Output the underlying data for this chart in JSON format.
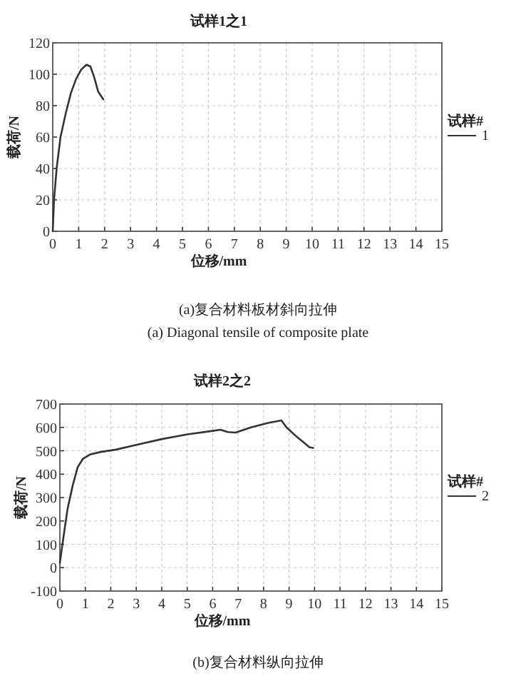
{
  "chart_data": [
    {
      "type": "line",
      "title": "试样1之1",
      "xlabel": "位移/mm",
      "ylabel": "载荷/N",
      "legend_title": "试样#",
      "legend": "right",
      "grid": true,
      "xlim": [
        0,
        15
      ],
      "xticks": [
        0,
        1,
        2,
        3,
        4,
        5,
        6,
        7,
        8,
        9,
        10,
        11,
        12,
        13,
        14,
        15
      ],
      "ylim": [
        0,
        120
      ],
      "yticks": [
        0,
        20,
        40,
        60,
        80,
        100,
        120
      ],
      "series": [
        {
          "name": "1",
          "color": "#333333",
          "x": [
            0,
            0.05,
            0.15,
            0.3,
            0.5,
            0.7,
            0.9,
            1.1,
            1.3,
            1.45,
            1.6,
            1.75,
            1.95
          ],
          "values": [
            0,
            20,
            40,
            60,
            75,
            88,
            97,
            103,
            106,
            105,
            98,
            89,
            84
          ]
        }
      ],
      "annotations": [
        "(a)复合材料板材斜向拉伸",
        "(a) Diagonal tensile of composite plate"
      ]
    },
    {
      "type": "line",
      "title": "试样2之2",
      "xlabel": "位移/mm",
      "ylabel": "载荷/N",
      "legend_title": "试样#",
      "legend": "right",
      "grid": true,
      "xlim": [
        0,
        15
      ],
      "xticks": [
        0,
        1,
        2,
        3,
        4,
        5,
        6,
        7,
        8,
        9,
        10,
        11,
        12,
        13,
        14,
        15
      ],
      "ylim": [
        -100,
        700
      ],
      "yticks": [
        -100,
        0,
        100,
        200,
        300,
        400,
        500,
        600,
        700
      ],
      "series": [
        {
          "name": "2",
          "color": "#333333",
          "x": [
            0,
            0.1,
            0.3,
            0.5,
            0.7,
            0.9,
            1.2,
            1.6,
            2.2,
            3,
            4,
            5,
            6,
            6.3,
            6.6,
            6.9,
            7.5,
            8.2,
            8.7,
            8.9,
            9.3,
            9.8,
            9.95
          ],
          "values": [
            20,
            100,
            250,
            350,
            430,
            465,
            485,
            495,
            505,
            525,
            550,
            570,
            585,
            590,
            580,
            578,
            600,
            620,
            630,
            600,
            560,
            515,
            512
          ]
        }
      ],
      "annotations": [
        "(b)复合材料纵向拉伸"
      ]
    }
  ]
}
